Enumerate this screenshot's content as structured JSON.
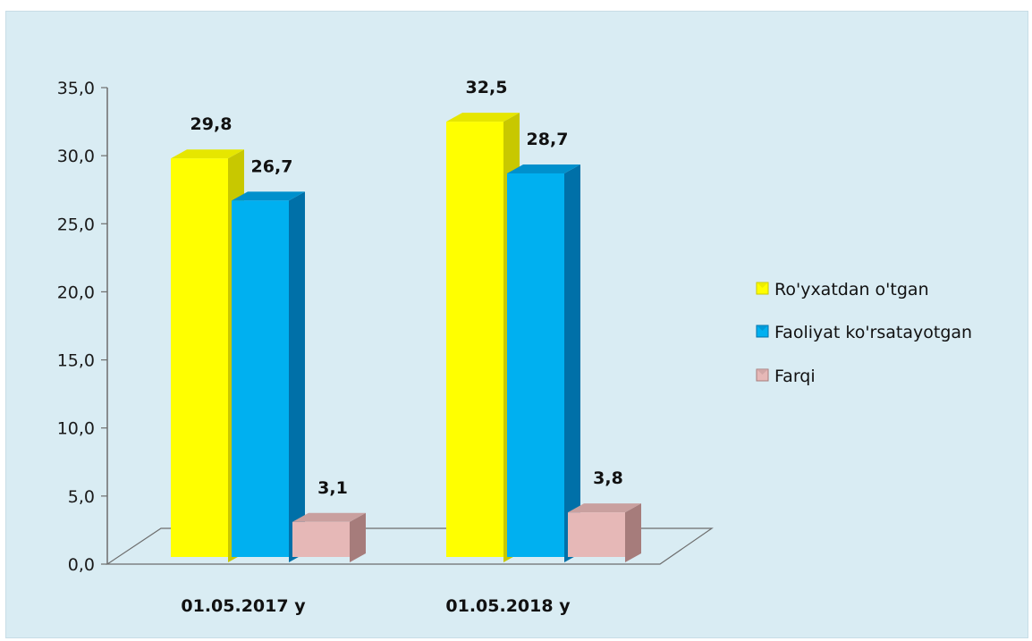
{
  "chart_data": {
    "type": "bar",
    "categories": [
      "01.05.2017 y",
      "01.05.2018 y"
    ],
    "series": [
      {
        "name": "Ro'yxatdan o'tgan",
        "values": [
          29.8,
          32.5
        ],
        "labels": [
          "29,8",
          "32,5"
        ],
        "color": "#ffff00",
        "side": "#c8c800",
        "top": "#e6e600"
      },
      {
        "name": "Faoliyat ko'rsatayotgan",
        "values": [
          26.7,
          28.7
        ],
        "labels": [
          "26,7",
          "28,7"
        ],
        "color": "#00b0f0",
        "side": "#0070a8",
        "top": "#0090cc"
      },
      {
        "name": "Farqi",
        "values": [
          3.1,
          3.8
        ],
        "labels": [
          "3,1",
          "3,8"
        ],
        "color": "#e6b8b7",
        "side": "#a67c7b",
        "top": "#c9a09f"
      }
    ],
    "yticks": [
      "0,0",
      "5,0",
      "10,0",
      "15,0",
      "20,0",
      "25,0",
      "30,0",
      "35,0"
    ],
    "ylim": [
      0,
      35
    ],
    "title": "",
    "xlabel": "",
    "ylabel": "",
    "legend_position": "right",
    "grid": false
  }
}
